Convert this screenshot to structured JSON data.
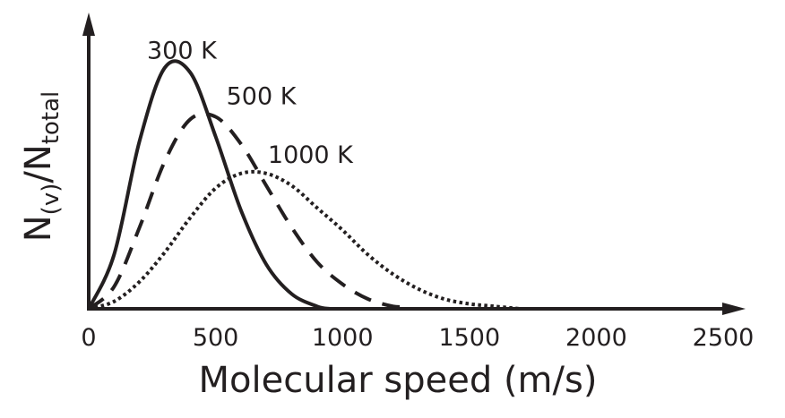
{
  "chart_data": {
    "type": "line",
    "xlabel": "Molecular speed (m/s)",
    "ylabel": {
      "main": "N",
      "sub1": "(v)",
      "mid": "/N",
      "sub2": "total"
    },
    "xlim": [
      0,
      2500
    ],
    "x_ticks": [
      "0",
      "500",
      "1000",
      "1500",
      "2000",
      "2500"
    ],
    "y_ticks": [],
    "grid": false,
    "series": [
      {
        "name": "300 K",
        "temperature_K": 300,
        "style": "solid",
        "x": [
          0,
          100,
          200,
          300,
          400,
          500,
          600,
          700,
          800,
          900,
          950
        ],
        "y": [
          0,
          0.22,
          0.68,
          0.98,
          0.96,
          0.7,
          0.4,
          0.18,
          0.06,
          0.01,
          0
        ]
      },
      {
        "name": "500 K",
        "temperature_K": 500,
        "style": "dashed",
        "x": [
          0,
          100,
          200,
          300,
          400,
          500,
          600,
          700,
          800,
          900,
          1000,
          1100,
          1200,
          1250
        ],
        "y": [
          0,
          0.09,
          0.33,
          0.6,
          0.77,
          0.78,
          0.67,
          0.5,
          0.33,
          0.19,
          0.1,
          0.04,
          0.01,
          0.01
        ]
      },
      {
        "name": "1000 K",
        "temperature_K": 1000,
        "style": "dotted",
        "x": [
          0,
          100,
          200,
          300,
          400,
          500,
          600,
          700,
          800,
          900,
          1000,
          1100,
          1200,
          1300,
          1400,
          1500,
          1600,
          1700
        ],
        "y": [
          0,
          0.03,
          0.11,
          0.23,
          0.37,
          0.49,
          0.55,
          0.55,
          0.5,
          0.41,
          0.32,
          0.22,
          0.14,
          0.08,
          0.04,
          0.02,
          0.01,
          0
        ]
      }
    ],
    "colors": {
      "axis": "#231f20",
      "line": "#231f20",
      "background": "#ffffff"
    }
  }
}
